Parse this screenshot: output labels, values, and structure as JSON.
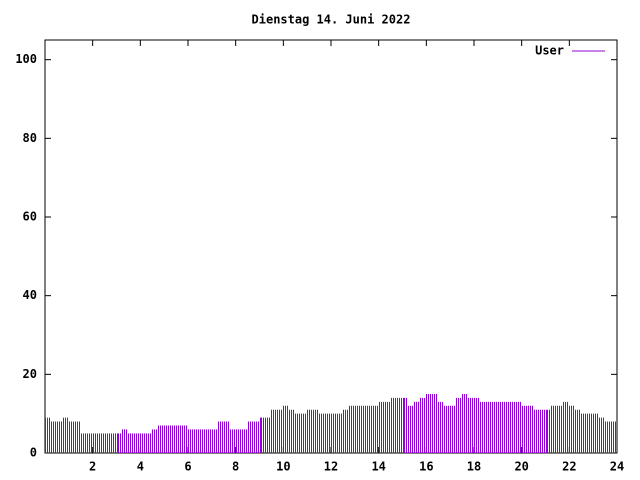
{
  "chart_data": {
    "type": "impulses",
    "title": "Dienstag 14. Juni 2022",
    "x": [
      0,
      0.25,
      0.5,
      0.75,
      1,
      1.25,
      1.5,
      1.75,
      2,
      2.25,
      2.5,
      2.75,
      3,
      3.25,
      3.5,
      3.75,
      4,
      4.25,
      4.5,
      4.75,
      5,
      5.25,
      5.5,
      5.75,
      6,
      6.25,
      6.5,
      6.75,
      7,
      7.25,
      7.5,
      7.75,
      8,
      8.25,
      8.5,
      8.75,
      9,
      9.25,
      9.5,
      9.75,
      10,
      10.25,
      10.5,
      10.75,
      11,
      11.25,
      11.5,
      11.75,
      12,
      12.25,
      12.5,
      12.75,
      13,
      13.25,
      13.5,
      13.75,
      14,
      14.25,
      14.5,
      14.75,
      15,
      15.25,
      15.5,
      15.75,
      16,
      16.25,
      16.5,
      16.75,
      17,
      17.25,
      17.5,
      17.75,
      18,
      18.25,
      18.5,
      18.75,
      19,
      19.25,
      19.5,
      19.75,
      20,
      20.25,
      20.5,
      20.75,
      21,
      21.25,
      21.5,
      21.75,
      22,
      22.25,
      22.5,
      22.75,
      23,
      23.25,
      23.5,
      23.75
    ],
    "series": [
      {
        "name": "User",
        "color": "#9400d3",
        "values": [
          9,
          8,
          8,
          9,
          8,
          8,
          5,
          5,
          5,
          5,
          5,
          5,
          5,
          6,
          5,
          5,
          5,
          5,
          6,
          7,
          7,
          7,
          7,
          7,
          6,
          6,
          6,
          6,
          6,
          8,
          8,
          6,
          6,
          6,
          8,
          8,
          9,
          9,
          11,
          11,
          12,
          11,
          10,
          10,
          11,
          11,
          10,
          10,
          10,
          10,
          11,
          12,
          12,
          12,
          12,
          12,
          13,
          13,
          14,
          14,
          14,
          12,
          13,
          14,
          15,
          15,
          13,
          12,
          12,
          14,
          15,
          14,
          14,
          13,
          13,
          13,
          13,
          13,
          13,
          13,
          12,
          12,
          11,
          11,
          11,
          12,
          12,
          13,
          12,
          11,
          10,
          10,
          10,
          9,
          8,
          8
        ]
      }
    ],
    "xlim": [
      0,
      24
    ],
    "xticks": [
      2,
      4,
      6,
      8,
      10,
      12,
      14,
      16,
      18,
      20,
      22,
      24
    ],
    "ylim": [
      0,
      105
    ],
    "yticks": [
      0,
      20,
      40,
      60,
      80,
      100
    ],
    "legend": "top-right"
  }
}
